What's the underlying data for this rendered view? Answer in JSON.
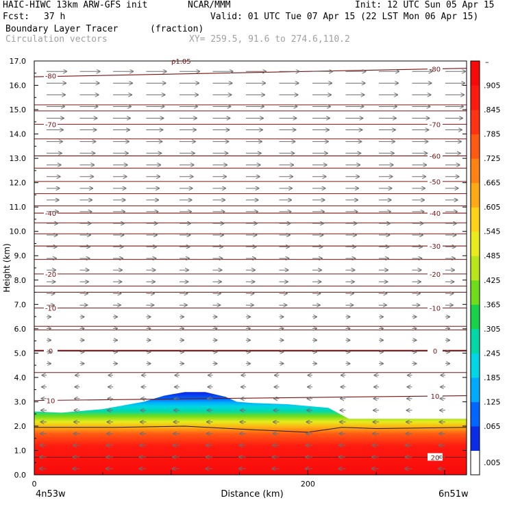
{
  "header": {
    "model": "HAIC-HIWC 13km ARW-GFS init",
    "org": "NCAR/MMM",
    "init": "Init: 12 UTC Sun 05 Apr 15",
    "fcst_label": "Fcst:",
    "fcst_value": "37 h",
    "valid": "Valid: 01 UTC Tue 07 Apr 15 (22 LST Mon 06 Apr 15)",
    "field1": "Boundary Layer Tracer",
    "field1_units": "(fraction)",
    "field2": "Circulation vectors",
    "xy": "XY= 259.5, 91.6 to 274.6,110.2"
  },
  "chart_data": {
    "type": "cross-section",
    "ylabel": "Height (km)",
    "xlabel": "Distance (km)",
    "ylim": [
      0,
      17
    ],
    "xlim": [
      0,
      316
    ],
    "yticks": [
      "0.0",
      "1.0",
      "2.0",
      "3.0",
      "4.0",
      "5.0",
      "6.0",
      "7.0",
      "8.0",
      "9.0",
      "10.0",
      "11.0",
      "12.0",
      "13.0",
      "14.0",
      "15.0",
      "16.0",
      "17.0"
    ],
    "xticks": [
      {
        "value": 0,
        "label": "0"
      },
      {
        "value": 200,
        "label": "200"
      }
    ],
    "endpoint_left": "4n53w",
    "endpoint_right": "6n51w",
    "top_overlap_label": "ρ1.05",
    "colorbar": {
      "labels": [
        ".005",
        ".065",
        ".125",
        ".185",
        ".245",
        ".305",
        ".365",
        ".425",
        ".485",
        ".545",
        ".605",
        ".665",
        ".725",
        ".785",
        ".845",
        ".905"
      ],
      "top_mark": "–",
      "colors": [
        "#ffffff",
        "#0a2ce6",
        "#0066ff",
        "#00aaff",
        "#00d6e6",
        "#00d8a8",
        "#18d24a",
        "#6fdc1c",
        "#b8e61a",
        "#e8ec1c",
        "#ffd21a",
        "#ffaa14",
        "#ff8214",
        "#ff5a14",
        "#ff3212",
        "#ff1a10",
        "#f80a0a"
      ]
    },
    "tracer_profile": {
      "note_values_km": "top of tracer layer (height, km) along distance",
      "x": [
        0,
        20,
        50,
        80,
        95,
        110,
        125,
        140,
        148,
        160,
        185,
        215,
        230,
        260,
        290,
        316
      ],
      "top": [
        2.6,
        2.55,
        2.7,
        3.0,
        3.25,
        3.4,
        3.4,
        3.2,
        3.0,
        2.95,
        2.9,
        2.75,
        2.3,
        2.3,
        2.3,
        2.3
      ]
    },
    "isotherms": [
      {
        "label": "-80",
        "label_left_y": 16.4,
        "y": [
          16.35,
          16.7
        ]
      },
      {
        "label": "-70",
        "label_left_y": 14.4,
        "y": [
          14.4,
          14.4
        ]
      },
      {
        "label": "-60",
        "y": [
          13.1,
          13.1
        ]
      },
      {
        "label": "-50",
        "y": [
          12.05,
          12.05
        ]
      },
      {
        "label": "-40",
        "label_left_y": 10.75,
        "y": [
          10.75,
          10.75
        ]
      },
      {
        "label": "-30",
        "y": [
          9.4,
          9.4
        ]
      },
      {
        "label": "-20",
        "label_left_y": 8.25,
        "y": [
          8.25,
          8.25
        ]
      },
      {
        "label": "-10",
        "label_left_y": 6.85,
        "y": [
          6.85,
          6.85
        ]
      },
      {
        "label": "0",
        "label_left_y": 5.1,
        "y": [
          5.1,
          5.1
        ]
      },
      {
        "label": "10",
        "label_left_y": 3.05,
        "y": [
          3.05,
          3.25
        ]
      },
      {
        "label": "20",
        "y": [
          0.72,
          0.72
        ]
      }
    ],
    "extra_contour_heights": [
      15.2,
      14.95,
      13.8,
      12.6,
      11.55,
      11.05,
      10.35,
      9.9,
      8.85,
      7.75,
      7.5,
      6.1,
      5.95,
      4.2
    ],
    "vectors": {
      "upper_direction": "eastward",
      "lower_direction": "westward"
    }
  }
}
